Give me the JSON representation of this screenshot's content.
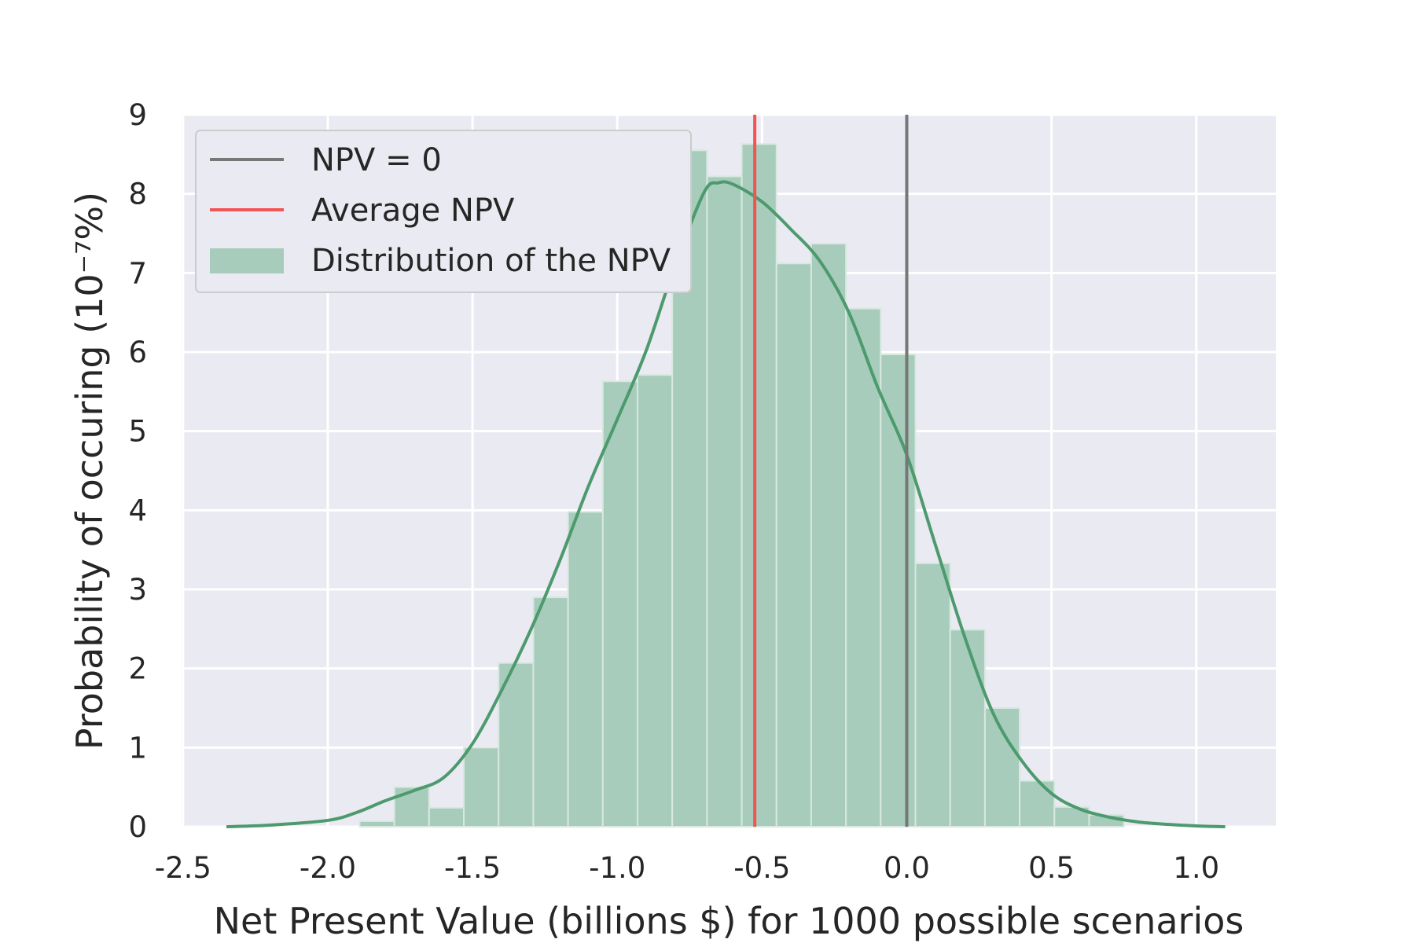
{
  "chart_data": {
    "type": "bar",
    "title": "",
    "xlabel": "Net Present Value (billions $) for 1000 possible scenarios",
    "ylabel": "Probability of occuring (10⁻⁷%)",
    "xlim": [
      -2.505,
      1.275
    ],
    "ylim": [
      0,
      9
    ],
    "xticks": [
      -2.5,
      -2.0,
      -1.5,
      -1.0,
      -0.5,
      0.0,
      0.5,
      1.0
    ],
    "xtick_labels": [
      "-2.5",
      "-2.0",
      "-1.5",
      "-1.0",
      "-0.5",
      "0.0",
      "0.5",
      "1.0"
    ],
    "yticks": [
      0,
      1,
      2,
      3,
      4,
      5,
      6,
      7,
      8,
      9
    ],
    "ytick_labels": [
      "0",
      "1",
      "2",
      "3",
      "4",
      "5",
      "6",
      "7",
      "8",
      "9"
    ],
    "grid": true,
    "legend_position": "top-left",
    "legend": [
      {
        "label": "NPV = 0",
        "kind": "line",
        "color": "#777777"
      },
      {
        "label": "Average NPV",
        "kind": "line",
        "color": "#f25454"
      },
      {
        "label": "Distribution of the NPV",
        "kind": "patch",
        "color": "#a8ccbb"
      }
    ],
    "histogram": {
      "name": "Distribution of the NPV",
      "color": "#a8ccbb",
      "bins": [
        {
          "x0": -1.89,
          "x1": -1.77,
          "value": 0.07
        },
        {
          "x0": -1.77,
          "x1": -1.65,
          "value": 0.5
        },
        {
          "x0": -1.65,
          "x1": -1.53,
          "value": 0.24
        },
        {
          "x0": -1.53,
          "x1": -1.41,
          "value": 1.0
        },
        {
          "x0": -1.41,
          "x1": -1.29,
          "value": 2.07
        },
        {
          "x0": -1.29,
          "x1": -1.17,
          "value": 2.9
        },
        {
          "x0": -1.17,
          "x1": -1.05,
          "value": 3.98
        },
        {
          "x0": -1.05,
          "x1": -0.93,
          "value": 5.63
        },
        {
          "x0": -0.93,
          "x1": -0.81,
          "value": 5.71
        },
        {
          "x0": -0.81,
          "x1": -0.69,
          "value": 8.55
        },
        {
          "x0": -0.69,
          "x1": -0.57,
          "value": 8.22
        },
        {
          "x0": -0.57,
          "x1": -0.45,
          "value": 8.63
        },
        {
          "x0": -0.45,
          "x1": -0.33,
          "value": 7.12
        },
        {
          "x0": -0.33,
          "x1": -0.21,
          "value": 7.37
        },
        {
          "x0": -0.21,
          "x1": -0.09,
          "value": 6.55
        },
        {
          "x0": -0.09,
          "x1": 0.03,
          "value": 5.97
        },
        {
          "x0": 0.03,
          "x1": 0.15,
          "value": 3.33
        },
        {
          "x0": 0.15,
          "x1": 0.27,
          "value": 2.49
        },
        {
          "x0": 0.27,
          "x1": 0.39,
          "value": 1.5
        },
        {
          "x0": 0.39,
          "x1": 0.51,
          "value": 0.58
        },
        {
          "x0": 0.51,
          "x1": 0.63,
          "value": 0.25
        },
        {
          "x0": 0.63,
          "x1": 0.75,
          "value": 0.15
        }
      ]
    },
    "kde": {
      "color": "#4c9a6e",
      "x": [
        -2.35,
        -2.2,
        -2.0,
        -1.9,
        -1.8,
        -1.7,
        -1.6,
        -1.5,
        -1.4,
        -1.3,
        -1.2,
        -1.1,
        -1.0,
        -0.9,
        -0.8,
        -0.7,
        -0.65,
        -0.6,
        -0.5,
        -0.4,
        -0.3,
        -0.2,
        -0.1,
        0.0,
        0.1,
        0.2,
        0.3,
        0.4,
        0.5,
        0.6,
        0.7,
        0.8,
        0.9,
        1.0,
        1.1
      ],
      "y": [
        0.0,
        0.02,
        0.08,
        0.18,
        0.33,
        0.46,
        0.62,
        1.05,
        1.72,
        2.48,
        3.35,
        4.3,
        5.15,
        6.02,
        7.1,
        8.02,
        8.14,
        8.12,
        7.9,
        7.55,
        7.15,
        6.5,
        5.55,
        4.7,
        3.55,
        2.4,
        1.42,
        0.82,
        0.42,
        0.22,
        0.12,
        0.06,
        0.03,
        0.01,
        0.0
      ]
    },
    "vlines": [
      {
        "name": "NPV = 0",
        "x": 0.0,
        "color": "#777777"
      },
      {
        "name": "Average NPV",
        "x": -0.525,
        "color": "#f25454"
      }
    ]
  }
}
